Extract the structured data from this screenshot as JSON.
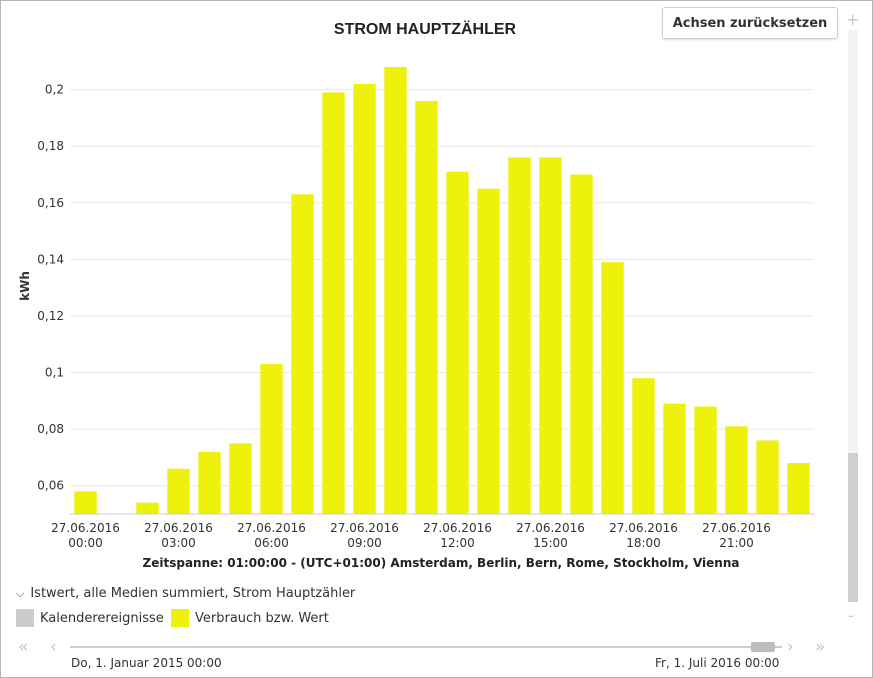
{
  "chart_data": {
    "type": "bar",
    "title": "STROM HAUPTZÄHLER",
    "ylabel": "kWh",
    "xlabel": "Zeitspanne: 01:00:00 - (UTC+01:00) Amsterdam, Berlin, Bern, Rome, Stockholm, Vienna",
    "ylim": [
      0.05,
      0.214
    ],
    "yticks": [
      0.06,
      0.08,
      0.1,
      0.12,
      0.14,
      0.16,
      0.18,
      0.2
    ],
    "ytick_labels": [
      "0,06",
      "0,08",
      "0,1",
      "0,12",
      "0,14",
      "0,16",
      "0,18",
      "0,2"
    ],
    "grid": true,
    "x_hours": [
      0,
      1,
      2,
      3,
      4,
      5,
      6,
      7,
      8,
      9,
      10,
      11,
      12,
      13,
      14,
      15,
      16,
      17,
      18,
      19,
      20,
      21,
      22,
      23
    ],
    "values": [
      0.058,
      null,
      0.054,
      0.066,
      0.072,
      0.075,
      0.103,
      0.163,
      0.199,
      0.202,
      0.208,
      0.196,
      0.171,
      0.165,
      0.176,
      0.176,
      0.17,
      0.139,
      0.098,
      0.089,
      0.088,
      0.081,
      0.076,
      0.068
    ],
    "xtick_hours": [
      0,
      3,
      6,
      9,
      12,
      15,
      18,
      21
    ],
    "xtick_dates": [
      "27.06.2016",
      "27.06.2016",
      "27.06.2016",
      "27.06.2016",
      "27.06.2016",
      "27.06.2016",
      "27.06.2016",
      "27.06.2016"
    ],
    "xtick_times": [
      "00:00",
      "03:00",
      "06:00",
      "09:00",
      "12:00",
      "15:00",
      "18:00",
      "21:00"
    ],
    "bar_color": "#eef20a",
    "series": [
      {
        "name": "Verbrauch bzw. Wert",
        "color": "#eef20a"
      }
    ]
  },
  "toolbar": {
    "reset_label": "Achsen zurücksetzen",
    "zoom_in": "+",
    "zoom_out": "-"
  },
  "legend": {
    "group_title": "Istwert, alle Medien summiert, Strom Hauptzähler",
    "items": [
      {
        "label": "Kalenderereignisse",
        "color": "#cccccc"
      },
      {
        "label": "Verbrauch bzw. Wert",
        "color": "#eef20a"
      }
    ]
  },
  "navigator": {
    "range_start": "Do, 1. Januar 2015 00:00",
    "range_end": "Fr, 1. Juli 2016 00:00",
    "first_icon": "double-chevron-left-icon",
    "prev_icon": "chevron-left-icon",
    "next_icon": "chevron-right-icon",
    "last_icon": "double-chevron-right-icon"
  }
}
